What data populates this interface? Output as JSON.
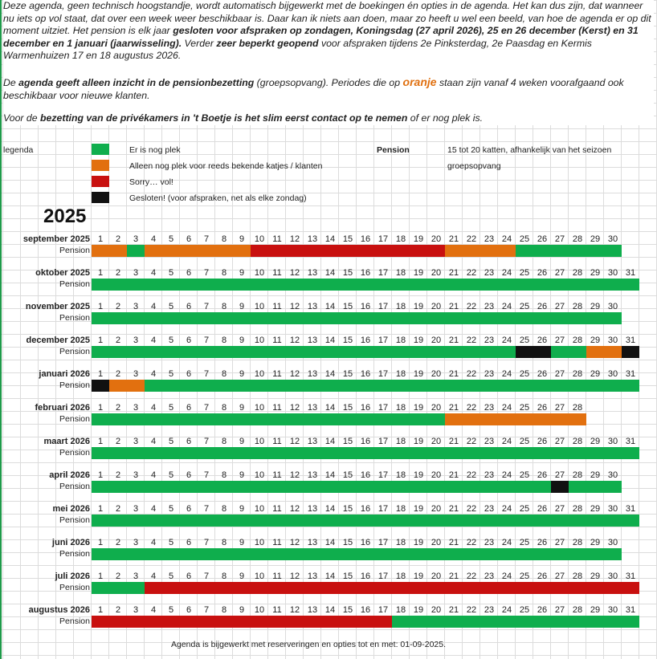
{
  "intro": {
    "p1_a": "Deze agenda, geen technisch hoogstandje, wordt automatisch bijgewerkt met de boekingen én opties in de agenda. Het kan dus zijn, dat wanneer nu iets op vol staat, dat over een week weer beschikbaar is. Daar kan ik niets aan doen, maar zo heeft u wel een beeld, van hoe de agenda er op dit moment uitziet. Het pension is elk jaar ",
    "p1_b": "gesloten voor afspraken op zondagen, Koningsdag (27 april 2026), 25 en 26 december (Kerst) en 31 december en 1 januari (jaarwisseling).",
    "p1_c": " Verder ",
    "p1_d": "zeer beperkt geopend",
    "p1_e": " voor afspraken tijdens 2e Pinksterdag, 2e Paasdag en Kermis Warmenhuizen  17 en 18 augustus 2026.",
    "p2_a": "De ",
    "p2_b": "agenda geeft alleen inzicht in de pensionbezetting",
    "p2_c": " (groepsopvang). Periodes die op ",
    "p2_d": "oranje",
    "p2_e": " staan zijn vanaf 4 weken voorafgaand ook beschikbaar voor nieuwe klanten.",
    "p3_a": "Voor de ",
    "p3_b": "bezetting van de privékamers in 't Boetje is het slim eerst contact op te nemen",
    "p3_c": " of er nog plek is."
  },
  "legend": {
    "label": "legenda",
    "items": [
      {
        "color": "#0fae4d",
        "text": "Er is nog plek"
      },
      {
        "color": "#e2700f",
        "text": "Alleen nog plek voor reeds bekende katjes / klanten"
      },
      {
        "color": "#c8100f",
        "text": "Sorry… vol!"
      },
      {
        "color": "#111111",
        "text": "Gesloten! (voor afspraken, net als elke zondag)"
      }
    ],
    "pension_key": "Pension",
    "pension_value": "15 tot 20 katten, afhankelijk van het seizoen",
    "pension_value2": "groepsopvang"
  },
  "year": "2025",
  "row_label": "Pension",
  "colors": {
    "G": "#0fae4d",
    "O": "#e2700f",
    "R": "#c8100f",
    "B": "#111111"
  },
  "months": [
    {
      "name": "september 2025",
      "days": 30,
      "segments": [
        [
          "O",
          1,
          2
        ],
        [
          "G",
          3,
          3
        ],
        [
          "O",
          4,
          9
        ],
        [
          "R",
          10,
          20
        ],
        [
          "O",
          21,
          24
        ],
        [
          "G",
          25,
          30
        ]
      ]
    },
    {
      "name": "oktober 2025",
      "days": 31,
      "segments": [
        [
          "G",
          1,
          31
        ]
      ]
    },
    {
      "name": "november 2025",
      "days": 30,
      "segments": [
        [
          "G",
          1,
          30
        ]
      ]
    },
    {
      "name": "december 2025",
      "days": 31,
      "segments": [
        [
          "G",
          1,
          24
        ],
        [
          "B",
          25,
          26
        ],
        [
          "G",
          27,
          28
        ],
        [
          "O",
          29,
          30
        ],
        [
          "B",
          31,
          31
        ]
      ]
    },
    {
      "name": "januari 2026",
      "days": 31,
      "segments": [
        [
          "B",
          1,
          1
        ],
        [
          "O",
          2,
          3
        ],
        [
          "G",
          4,
          31
        ]
      ]
    },
    {
      "name": "februari 2026",
      "days": 28,
      "segments": [
        [
          "G",
          1,
          20
        ],
        [
          "O",
          21,
          28
        ]
      ]
    },
    {
      "name": "maart 2026",
      "days": 31,
      "segments": [
        [
          "G",
          1,
          31
        ]
      ]
    },
    {
      "name": "april 2026",
      "days": 30,
      "segments": [
        [
          "G",
          1,
          26
        ],
        [
          "B",
          27,
          27
        ],
        [
          "G",
          28,
          30
        ]
      ]
    },
    {
      "name": "mei 2026",
      "days": 31,
      "segments": [
        [
          "G",
          1,
          31
        ]
      ]
    },
    {
      "name": "juni 2026",
      "days": 30,
      "segments": [
        [
          "G",
          1,
          30
        ]
      ]
    },
    {
      "name": "juli 2026",
      "days": 31,
      "segments": [
        [
          "G",
          1,
          3
        ],
        [
          "R",
          4,
          31
        ]
      ]
    },
    {
      "name": "augustus 2026",
      "days": 31,
      "segments": [
        [
          "R",
          1,
          17
        ],
        [
          "G",
          18,
          31
        ]
      ]
    }
  ],
  "footer": "Agenda is bijgewerkt met reserveringen en opties tot en met: 01-09-2025."
}
